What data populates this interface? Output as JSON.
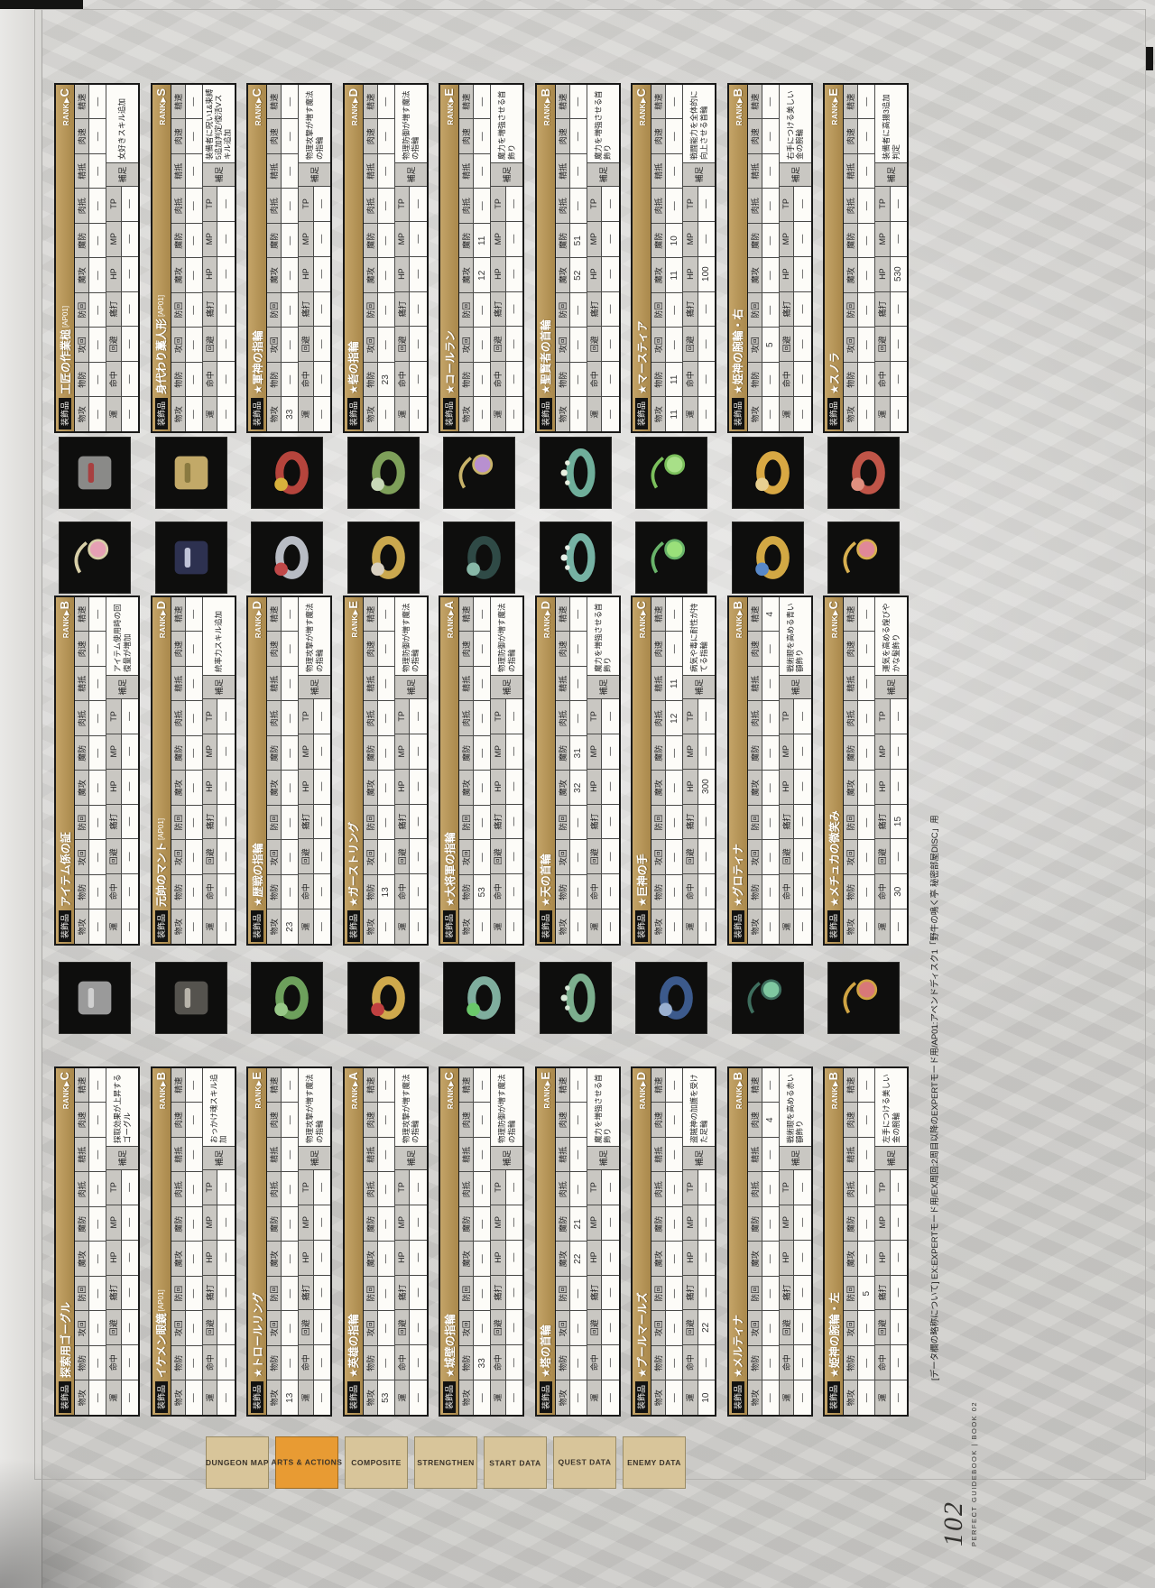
{
  "page": {
    "number": "102",
    "edition": "PERFECT GUIDEBOOK | BOOK 02",
    "footnote": "[データ欄の略称について] EX:EXPERTモード用/EX周回:2周目以降のEXPERTモード用/AP01:アペンドディスク1「野牛の鳴く亭 秘密部屋DISC」用",
    "category_label": "装飾品",
    "rank_label": "RANK▶",
    "supplement_label": "補足"
  },
  "colors": {
    "gold_band": "#ad8f52",
    "header_cell": "#c9c7c2",
    "active_tab": "#e89b33",
    "tab": "#d8c59a",
    "icon_bg": "#0e0e0d"
  },
  "stats_row1": [
    "物攻",
    "物防",
    "攻回",
    "防回",
    "魔攻",
    "魔防",
    "肉抵",
    "精抵",
    "肉速",
    "精速"
  ],
  "stats_row2": [
    "運",
    "命中",
    "回避",
    "痛打",
    "HP",
    "MP",
    "TP"
  ],
  "tabs": [
    {
      "label": "DUNGEON MAP",
      "active": false
    },
    {
      "label": "ARTS & ACTIONS",
      "active": true
    },
    {
      "label": "COMPOSITE",
      "active": false
    },
    {
      "label": "STRENGTHEN",
      "active": false
    },
    {
      "label": "START DATA",
      "active": false
    },
    {
      "label": "QUEST DATA",
      "active": false
    },
    {
      "label": "ENEMY DATA",
      "active": false
    }
  ],
  "columns": [
    {
      "entries": [
        {
          "name": "探索用ゴーグル",
          "suffix": "",
          "rank": "C",
          "row1": [
            "—",
            "—",
            "—",
            "—",
            "—",
            "—",
            "—",
            "—",
            "—",
            "—"
          ],
          "row2": [
            "—",
            "—",
            "—",
            "—",
            "—",
            "—",
            "—"
          ],
          "supplement": "採取効果が上昇するゴーグル",
          "icon": {
            "shape": "block",
            "c1": "#9a9a9a",
            "c2": "#d0d0d0"
          }
        },
        {
          "name": "イケメン眼鏡",
          "suffix": "[AP01]",
          "rank": "B",
          "row1": [
            "—",
            "—",
            "—",
            "—",
            "—",
            "—",
            "—",
            "—",
            "—",
            "—"
          ],
          "row2": [
            "—",
            "—",
            "—",
            "—",
            "—",
            "—",
            "—"
          ],
          "supplement": "おっかけ魂スキル追加",
          "icon": {
            "shape": "block",
            "c1": "#55534e",
            "c2": "#b8b4aa"
          }
        },
        {
          "name": "★トロールリング",
          "suffix": "",
          "rank": "E",
          "row1": [
            "13",
            "—",
            "—",
            "—",
            "—",
            "—",
            "—",
            "—",
            "—",
            "—"
          ],
          "row2": [
            "—",
            "—",
            "—",
            "—",
            "—",
            "—",
            "—"
          ],
          "supplement": "物理攻撃が増す魔法の指輪",
          "icon": {
            "shape": "ring",
            "c1": "#6da05c",
            "c2": "#98c888"
          }
        },
        {
          "name": "★英雄の指輪",
          "suffix": "",
          "rank": "A",
          "row1": [
            "53",
            "—",
            "—",
            "—",
            "—",
            "—",
            "—",
            "—",
            "—",
            "—"
          ],
          "row2": [
            "—",
            "—",
            "—",
            "—",
            "—",
            "—",
            "—"
          ],
          "supplement": "物理攻撃が増す魔法の指輪",
          "icon": {
            "shape": "ring",
            "c1": "#cfa94c",
            "c2": "#c04040"
          }
        },
        {
          "name": "★城壁の指輪",
          "suffix": "",
          "rank": "C",
          "row1": [
            "—",
            "33",
            "—",
            "—",
            "—",
            "—",
            "—",
            "—",
            "—",
            "—"
          ],
          "row2": [
            "—",
            "—",
            "—",
            "—",
            "—",
            "—",
            "—"
          ],
          "supplement": "物理防御が増す魔法の指輪",
          "icon": {
            "shape": "ring",
            "c1": "#7fae9e",
            "c2": "#6ac86a"
          }
        },
        {
          "name": "★塔の首輪",
          "suffix": "",
          "rank": "E",
          "row1": [
            "—",
            "—",
            "—",
            "—",
            "22",
            "21",
            "—",
            "—",
            "—",
            "—"
          ],
          "row2": [
            "—",
            "—",
            "—",
            "—",
            "—",
            "—",
            "—"
          ],
          "supplement": "魔力を増強させる首飾り",
          "icon": {
            "shape": "collar",
            "c1": "#7cae8e",
            "c2": "#d8e8d8"
          }
        },
        {
          "name": "★プールマールズ",
          "suffix": "",
          "rank": "D",
          "row1": [
            "—",
            "—",
            "—",
            "—",
            "—",
            "—",
            "—",
            "—",
            "—",
            "—"
          ],
          "row2": [
            "10",
            "—",
            "22",
            "—",
            "—",
            "—",
            "—"
          ],
          "supplement": "盗賊神の加護を受けた足輪",
          "icon": {
            "shape": "ring",
            "c1": "#3c5a8c",
            "c2": "#9ab0d0"
          }
        },
        {
          "name": "★メルティナ",
          "suffix": "",
          "rank": "B",
          "row1": [
            "—",
            "—",
            "—",
            "—",
            "—",
            "—",
            "—",
            "—",
            "4",
            "—"
          ],
          "row2": [
            "—",
            "—",
            "—",
            "—",
            "—",
            "—",
            "—"
          ],
          "supplement": "戦術眼を高める赤い額飾り",
          "icon": {
            "shape": "charm",
            "c1": "#3e6e5e",
            "c2": "#7fc8a0"
          }
        },
        {
          "name": "★姫神の腕輪・左",
          "suffix": "",
          "rank": "B",
          "row1": [
            "—",
            "—",
            "—",
            "5",
            "—",
            "—",
            "—",
            "—",
            "—",
            "—"
          ],
          "row2": [
            "—",
            "—",
            "—",
            "—",
            "—",
            "—",
            "—"
          ],
          "supplement": "左手につける美しい金の腕輪",
          "icon": {
            "shape": "charm",
            "c1": "#d0a443",
            "c2": "#d87878"
          }
        }
      ]
    },
    {
      "entries": [
        {
          "name": "アイテム係の証",
          "suffix": "",
          "rank": "B",
          "row1": [
            "—",
            "—",
            "—",
            "—",
            "—",
            "—",
            "—",
            "—",
            "—",
            "—"
          ],
          "row2": [
            "—",
            "—",
            "—",
            "—",
            "—",
            "—",
            "—"
          ],
          "supplement": "アイテム使用時の回復量が増加",
          "icon": {
            "shape": "charm",
            "c1": "#d8cfa8",
            "c2": "#e6a0b4"
          }
        },
        {
          "name": "元帥のマント",
          "suffix": "[AP01]",
          "rank": "D",
          "row1": [
            "—",
            "—",
            "—",
            "—",
            "—",
            "—",
            "—",
            "—",
            "—",
            "—"
          ],
          "row2": [
            "—",
            "—",
            "—",
            "—",
            "—",
            "—",
            "—"
          ],
          "supplement": "統率力スキル追加",
          "icon": {
            "shape": "block",
            "c1": "#2d3150",
            "c2": "#c0c4d8"
          }
        },
        {
          "name": "★歴戦の指輪",
          "suffix": "",
          "rank": "D",
          "row1": [
            "23",
            "—",
            "—",
            "—",
            "—",
            "—",
            "—",
            "—",
            "—",
            "—"
          ],
          "row2": [
            "—",
            "—",
            "—",
            "—",
            "—",
            "—",
            "—"
          ],
          "supplement": "物理攻撃が増す魔法の指輪",
          "icon": {
            "shape": "ring",
            "c1": "#b8bcc4",
            "c2": "#c04848"
          }
        },
        {
          "name": "★ガーストリング",
          "suffix": "",
          "rank": "E",
          "row1": [
            "—",
            "13",
            "—",
            "—",
            "—",
            "—",
            "—",
            "—",
            "—",
            "—"
          ],
          "row2": [
            "—",
            "—",
            "—",
            "—",
            "—",
            "—",
            "—"
          ],
          "supplement": "物理防御が増す魔法の指輪",
          "icon": {
            "shape": "ring",
            "c1": "#caa84e",
            "c2": "#d8d0c0"
          }
        },
        {
          "name": "★大将軍の指輪",
          "suffix": "",
          "rank": "A",
          "row1": [
            "—",
            "53",
            "—",
            "—",
            "—",
            "—",
            "—",
            "—",
            "—",
            "—"
          ],
          "row2": [
            "—",
            "—",
            "—",
            "—",
            "—",
            "—",
            "—"
          ],
          "supplement": "物理防御が増す魔法の指輪",
          "icon": {
            "shape": "ring",
            "c1": "#2f4a46",
            "c2": "#88b8a8"
          }
        },
        {
          "name": "★天の首輪",
          "suffix": "",
          "rank": "D",
          "row1": [
            "—",
            "—",
            "—",
            "—",
            "32",
            "31",
            "—",
            "—",
            "—",
            "—"
          ],
          "row2": [
            "—",
            "—",
            "—",
            "—",
            "—",
            "—",
            "—"
          ],
          "supplement": "魔力を増強させる首飾り",
          "icon": {
            "shape": "collar",
            "c1": "#76b2a4",
            "c2": "#e8f0e8"
          }
        },
        {
          "name": "★巨神の手",
          "suffix": "",
          "rank": "C",
          "row1": [
            "—",
            "—",
            "—",
            "—",
            "—",
            "—",
            "12",
            "11",
            "—",
            "—"
          ],
          "row2": [
            "—",
            "—",
            "—",
            "—",
            "300",
            "—",
            "—"
          ],
          "supplement": "病気や毒に耐性が持てる指輪",
          "icon": {
            "shape": "charm",
            "c1": "#69b46a",
            "c2": "#9ae07a"
          }
        },
        {
          "name": "★グロティナ",
          "suffix": "",
          "rank": "B",
          "row1": [
            "—",
            "—",
            "—",
            "—",
            "—",
            "—",
            "—",
            "—",
            "—",
            "4"
          ],
          "row2": [
            "—",
            "—",
            "—",
            "—",
            "—",
            "—",
            "—"
          ],
          "supplement": "戦術眼を高める青い額飾り",
          "icon": {
            "shape": "ring",
            "c1": "#d2a844",
            "c2": "#5888c8"
          }
        },
        {
          "name": "★メチュカの微笑み",
          "suffix": "",
          "rank": "C",
          "row1": [
            "—",
            "—",
            "—",
            "—",
            "—",
            "—",
            "—",
            "—",
            "—",
            "—"
          ],
          "row2": [
            "—",
            "30",
            "—",
            "15",
            "—",
            "—",
            "—"
          ],
          "supplement": "運気を高める煌びやかな髪飾り",
          "icon": {
            "shape": "charm",
            "c1": "#d8b050",
            "c2": "#e08898"
          }
        }
      ]
    },
    {
      "entries": [
        {
          "name": "工匠の作業槌",
          "suffix": "[AP01]",
          "rank": "C",
          "row1": [
            "—",
            "—",
            "—",
            "—",
            "—",
            "—",
            "—",
            "—",
            "—",
            "—"
          ],
          "row2": [
            "—",
            "—",
            "—",
            "—",
            "—",
            "—",
            "—"
          ],
          "supplement": "女好きスキル追加",
          "icon": {
            "shape": "block",
            "c1": "#8a8a88",
            "c2": "#a84040"
          }
        },
        {
          "name": "身代わり藁人形",
          "suffix": "[AP01]",
          "rank": "S",
          "row1": [
            "—",
            "—",
            "—",
            "—",
            "—",
            "—",
            "—",
            "—",
            "—",
            "—"
          ],
          "row2": [
            "—",
            "—",
            "—",
            "—",
            "—",
            "—",
            "—"
          ],
          "supplement": "装備者に呪い1&束縛5追加判定/復活Vスキル追加",
          "icon": {
            "shape": "block",
            "c1": "#c2a968",
            "c2": "#8a7a40"
          }
        },
        {
          "name": "★軍神の指輪",
          "suffix": "",
          "rank": "C",
          "row1": [
            "33",
            "—",
            "—",
            "—",
            "—",
            "—",
            "—",
            "—",
            "—",
            "—"
          ],
          "row2": [
            "—",
            "—",
            "—",
            "—",
            "—",
            "—",
            "—"
          ],
          "supplement": "物理攻撃が増す魔法の指輪",
          "icon": {
            "shape": "ring",
            "c1": "#b5443c",
            "c2": "#d8b23c"
          }
        },
        {
          "name": "★砦の指輪",
          "suffix": "",
          "rank": "D",
          "row1": [
            "—",
            "23",
            "—",
            "—",
            "—",
            "—",
            "—",
            "—",
            "—",
            "—"
          ],
          "row2": [
            "—",
            "—",
            "—",
            "—",
            "—",
            "—",
            "—"
          ],
          "supplement": "物理防御が増す魔法の指輪",
          "icon": {
            "shape": "ring",
            "c1": "#7ea05a",
            "c2": "#c8d8b8"
          }
        },
        {
          "name": "★コールラン",
          "suffix": "",
          "rank": "E",
          "row1": [
            "—",
            "—",
            "—",
            "—",
            "12",
            "11",
            "—",
            "—",
            "—",
            "—"
          ],
          "row2": [
            "—",
            "—",
            "—",
            "—",
            "—",
            "—",
            "—"
          ],
          "supplement": "魔力を増強させる首飾り",
          "icon": {
            "shape": "charm",
            "c1": "#c8b36a",
            "c2": "#b890d0"
          }
        },
        {
          "name": "★聖賢者の首輪",
          "suffix": "",
          "rank": "B",
          "row1": [
            "—",
            "—",
            "—",
            "—",
            "52",
            "51",
            "—",
            "—",
            "—",
            "—"
          ],
          "row2": [
            "—",
            "—",
            "—",
            "—",
            "—",
            "—",
            "—"
          ],
          "supplement": "魔力を増強させる首飾り",
          "icon": {
            "shape": "collar",
            "c1": "#6fae9a",
            "c2": "#e8f0e0"
          }
        },
        {
          "name": "★マースティア",
          "suffix": "",
          "rank": "C",
          "row1": [
            "11",
            "11",
            "—",
            "—",
            "11",
            "10",
            "—",
            "—",
            "—",
            "—"
          ],
          "row2": [
            "—",
            "—",
            "—",
            "—",
            "100",
            "—",
            "—"
          ],
          "supplement": "戦闘能力を全体的に向上させる首輪",
          "icon": {
            "shape": "charm",
            "c1": "#7bc05c",
            "c2": "#a8e088"
          }
        },
        {
          "name": "★姫神の腕輪・右",
          "suffix": "",
          "rank": "B",
          "row1": [
            "—",
            "—",
            "5",
            "—",
            "—",
            "—",
            "—",
            "—",
            "—",
            "—"
          ],
          "row2": [
            "—",
            "—",
            "—",
            "—",
            "—",
            "—",
            "—"
          ],
          "supplement": "右手につける美しい金の腕輪",
          "icon": {
            "shape": "ring",
            "c1": "#d8a843",
            "c2": "#e8d090"
          }
        },
        {
          "name": "★スノラ",
          "suffix": "",
          "rank": "E",
          "row1": [
            "—",
            "—",
            "—",
            "—",
            "—",
            "—",
            "—",
            "—",
            "—",
            "—"
          ],
          "row2": [
            "—",
            "—",
            "—",
            "—",
            "530",
            "—",
            "—"
          ],
          "supplement": "装備者に高揚3追加判定",
          "icon": {
            "shape": "ring",
            "c1": "#c05548",
            "c2": "#e09080"
          }
        }
      ]
    }
  ]
}
